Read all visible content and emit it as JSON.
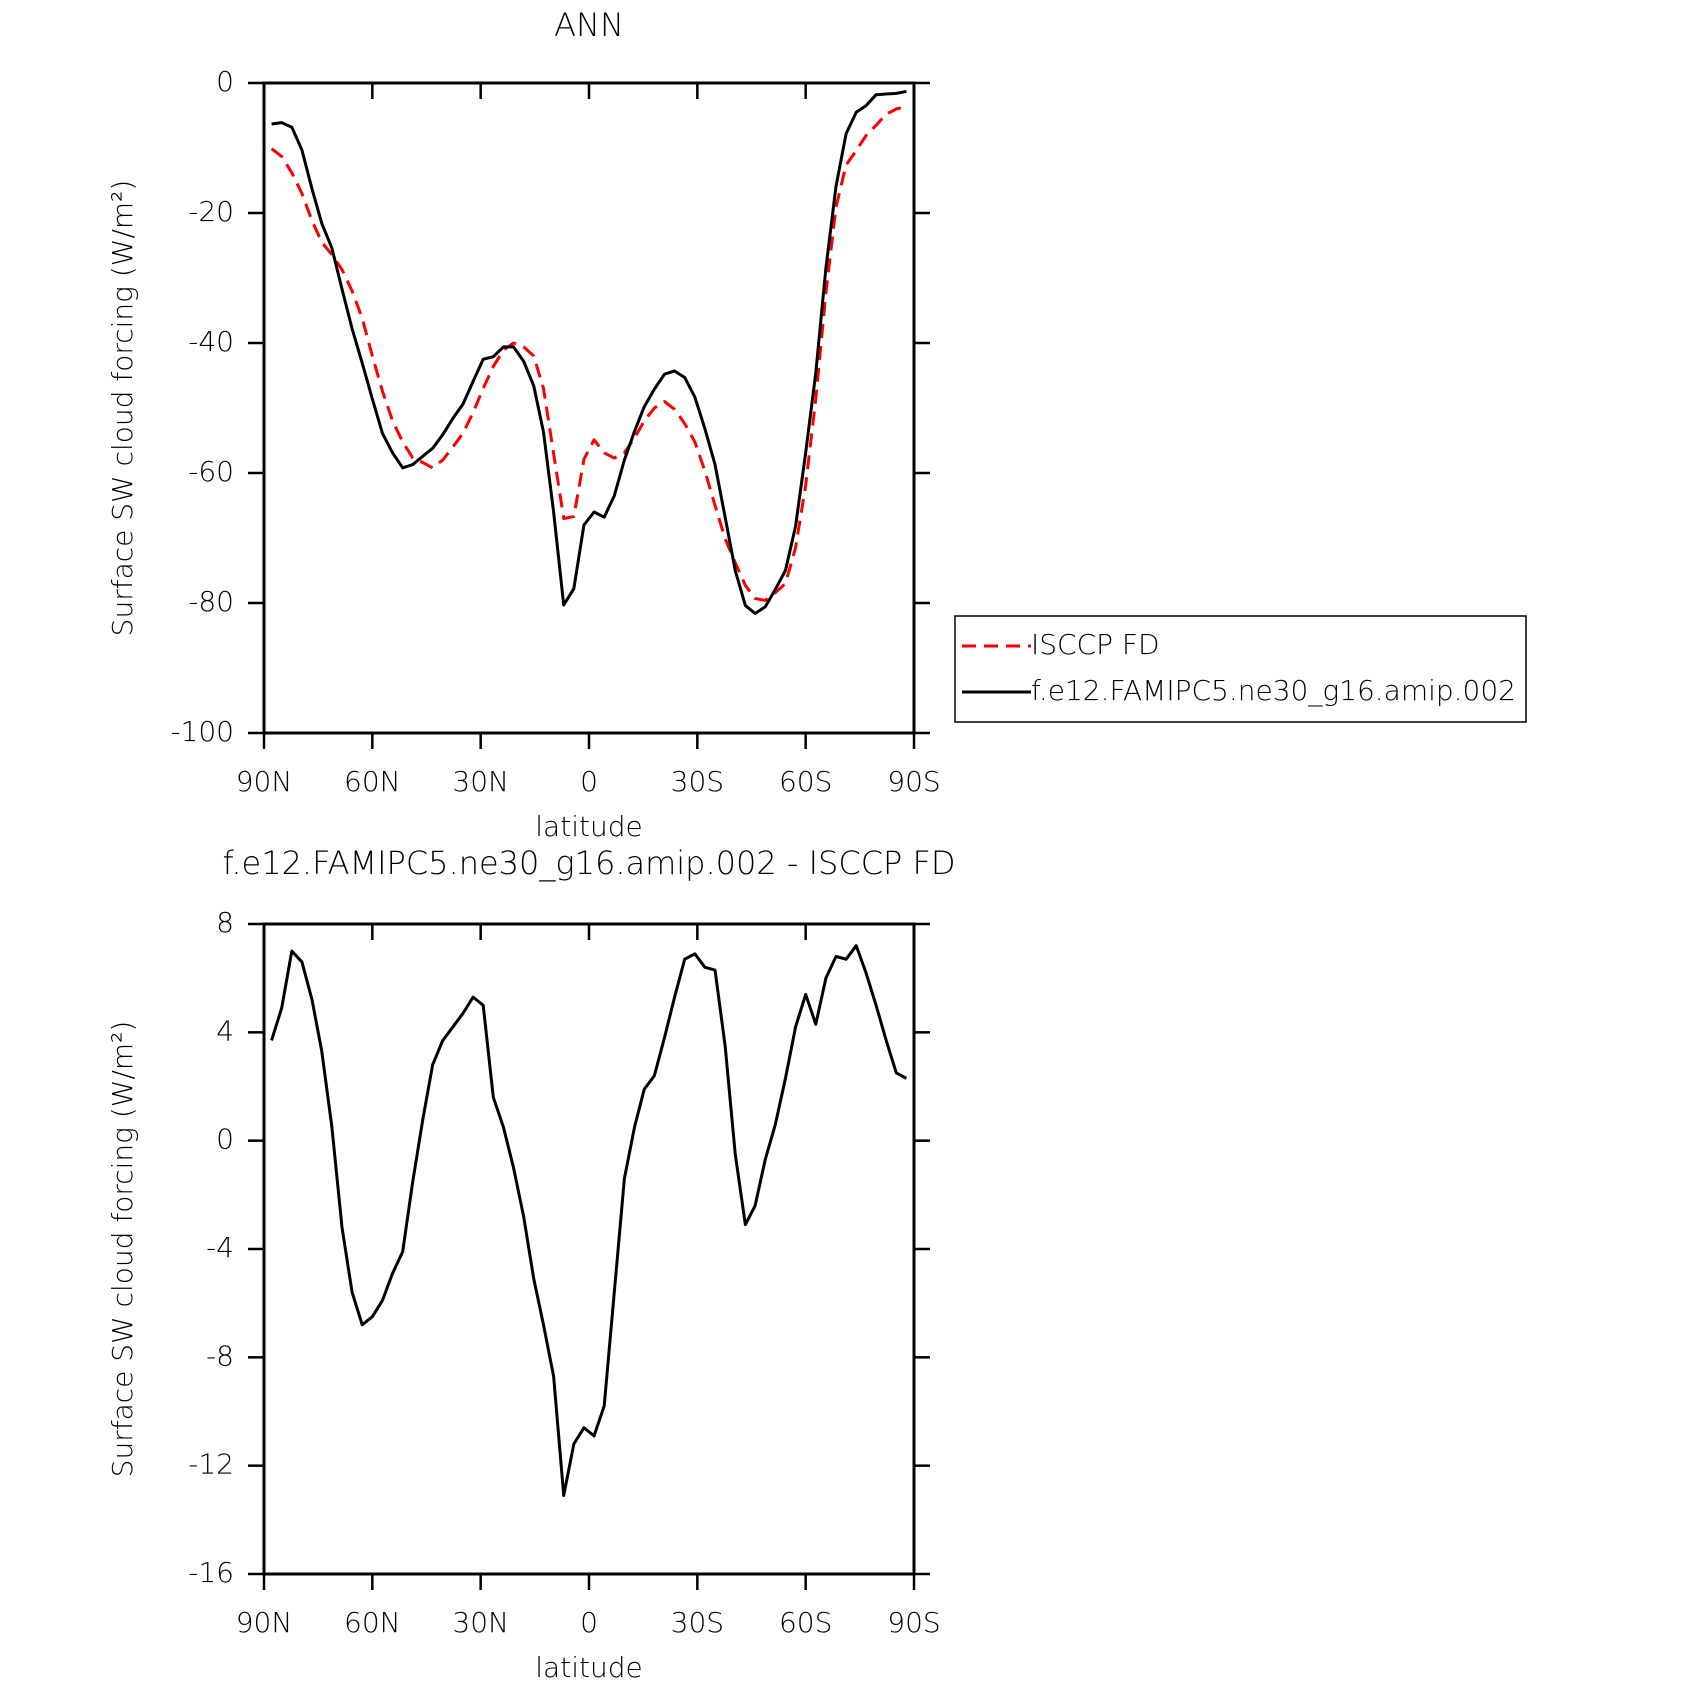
{
  "chart_data": [
    {
      "type": "line",
      "title": "ANN",
      "x": [
        87.9,
        85.1,
        82.3,
        79.5,
        76.7,
        74.0,
        71.2,
        68.4,
        65.6,
        62.8,
        60.0,
        57.2,
        54.4,
        51.6,
        48.8,
        46.0,
        43.3,
        40.5,
        37.7,
        34.9,
        32.1,
        29.3,
        26.5,
        23.7,
        20.9,
        18.1,
        15.3,
        12.6,
        9.8,
        7.0,
        4.2,
        1.4,
        -1.4,
        -4.2,
        -7.0,
        -9.8,
        -12.6,
        -15.3,
        -18.1,
        -20.9,
        -23.7,
        -26.5,
        -29.3,
        -32.1,
        -34.9,
        -37.7,
        -40.5,
        -43.3,
        -46.0,
        -48.8,
        -51.6,
        -54.4,
        -57.2,
        -60.0,
        -62.8,
        -65.6,
        -68.4,
        -71.2,
        -74.0,
        -76.7,
        -79.5,
        -82.3,
        -85.1,
        -87.9
      ],
      "series": [
        {
          "name": "ISCCP FD",
          "color": "#ff0000",
          "dash": "dashed",
          "values": [
            -10.1,
            -11.3,
            -13.8,
            -17,
            -21.2,
            -24.5,
            -26.4,
            -28.7,
            -32,
            -36.2,
            -42,
            -47.4,
            -52,
            -55.2,
            -57.7,
            -58.4,
            -59.2,
            -58,
            -56,
            -53.9,
            -50.7,
            -47,
            -43.6,
            -41.1,
            -40,
            -40.6,
            -42,
            -47,
            -57,
            -67,
            -66.7,
            -57.9,
            -54.9,
            -56.9,
            -57.7,
            -56.9,
            -54.6,
            -52,
            -50,
            -49,
            -50.2,
            -52.4,
            -55.2,
            -59.7,
            -65,
            -70.1,
            -73.8,
            -77.3,
            -79.3,
            -79.6,
            -78.4,
            -77,
            -71.5,
            -61.9,
            -48.6,
            -32.3,
            -19.1,
            -12.6,
            -10.4,
            -8.1,
            -6.5,
            -4.8,
            -4,
            -3.6
          ]
        },
        {
          "name": "f.e12.FAMIPC5.ne30_g16.amip.002",
          "color": "#000000",
          "dash": "solid",
          "values": [
            -6.3,
            -6.1,
            -6.8,
            -10.3,
            -16.3,
            -21.6,
            -25.4,
            -31.7,
            -37.8,
            -43.1,
            -48.6,
            -53.9,
            -56.9,
            -59.2,
            -58.7,
            -57.4,
            -56.2,
            -54.1,
            -51.6,
            -49.4,
            -45.9,
            -42.5,
            -42.1,
            -40.6,
            -40.6,
            -42.8,
            -46.6,
            -53.7,
            -66.0,
            -80.3,
            -77.8,
            -68.0,
            -66.0,
            -66.8,
            -63.5,
            -58.0,
            -53.6,
            -49.8,
            -47.1,
            -44.8,
            -44.3,
            -45.3,
            -48.3,
            -53.2,
            -58.7,
            -66.8,
            -75.0,
            -80.4,
            -81.6,
            -80.6,
            -77.9,
            -75.0,
            -68.2,
            -56.9,
            -44.6,
            -28.5,
            -15.9,
            -7.8,
            -4.5,
            -3.5,
            -1.8,
            -1.7,
            -1.6,
            -1.3
          ]
        }
      ],
      "xlim": [
        90,
        -90
      ],
      "xticks": [
        {
          "value": 90,
          "label": "90N"
        },
        {
          "value": 60,
          "label": "60N"
        },
        {
          "value": 30,
          "label": "30N"
        },
        0,
        {
          "value": -30,
          "label": "30S"
        },
        {
          "value": -60,
          "label": "60S"
        },
        {
          "value": -90,
          "label": "90S"
        }
      ],
      "ylim": [
        -100,
        0
      ],
      "yticks": [
        -100,
        -80,
        -60,
        -40,
        -20,
        0
      ],
      "xlabel": "latitude",
      "ylabel": "Surface SW cloud forcing (W/m²)",
      "legend": "right"
    },
    {
      "type": "line",
      "title": "f.e12.FAMIPC5.ne30_g16.amip.002 - ISCCP FD",
      "x": [
        87.9,
        85.1,
        82.3,
        79.5,
        76.7,
        74.0,
        71.2,
        68.4,
        65.6,
        62.8,
        60.0,
        57.2,
        54.4,
        51.6,
        48.8,
        46.0,
        43.3,
        40.5,
        37.7,
        34.9,
        32.1,
        29.3,
        26.5,
        23.7,
        20.9,
        18.1,
        15.3,
        12.6,
        9.8,
        7.0,
        4.2,
        1.4,
        -1.4,
        -4.2,
        -7.0,
        -9.8,
        -12.6,
        -15.3,
        -18.1,
        -20.9,
        -23.7,
        -26.5,
        -29.3,
        -32.1,
        -34.9,
        -37.7,
        -40.5,
        -43.3,
        -46.0,
        -48.8,
        -51.6,
        -54.4,
        -57.2,
        -60.0,
        -62.8,
        -65.6,
        -68.4,
        -71.2,
        -74.0,
        -76.7,
        -79.5,
        -82.3,
        -85.1,
        -87.9
      ],
      "series": [
        {
          "color": "#000000",
          "dash": "solid",
          "values": [
            3.7,
            4.9,
            7.0,
            6.6,
            5.2,
            3.3,
            0.5,
            -3.2,
            -5.6,
            -6.8,
            -6.5,
            -5.9,
            -4.9,
            -4.1,
            -1.5,
            0.8,
            2.8,
            3.7,
            4.2,
            4.7,
            5.3,
            5.0,
            1.6,
            0.5,
            -1.0,
            -2.8,
            -5.1,
            -6.8,
            -8.7,
            -13.1,
            -11.2,
            -10.6,
            -10.9,
            -9.8,
            -5.6,
            -1.4,
            0.5,
            1.9,
            2.4,
            3.8,
            5.3,
            6.7,
            6.9,
            6.4,
            6.3,
            3.5,
            -0.5,
            -3.1,
            -2.4,
            -0.7,
            0.6,
            2.3,
            4.2,
            5.4,
            4.3,
            6.0,
            6.8,
            6.7,
            7.2,
            6.2,
            5.0,
            3.7,
            2.5,
            2.3
          ]
        }
      ],
      "xlim": [
        90,
        -90
      ],
      "xticks": [
        {
          "value": 90,
          "label": "90N"
        },
        {
          "value": 60,
          "label": "60N"
        },
        {
          "value": 30,
          "label": "30N"
        },
        0,
        {
          "value": -30,
          "label": "30S"
        },
        {
          "value": -60,
          "label": "60S"
        },
        {
          "value": -90,
          "label": "90S"
        }
      ],
      "ylim": [
        -16,
        8
      ],
      "yticks": [
        -16,
        -12,
        -8,
        -4,
        0,
        4,
        8
      ],
      "xlabel": "latitude",
      "ylabel": "Surface SW cloud forcing (W/m²)"
    }
  ]
}
